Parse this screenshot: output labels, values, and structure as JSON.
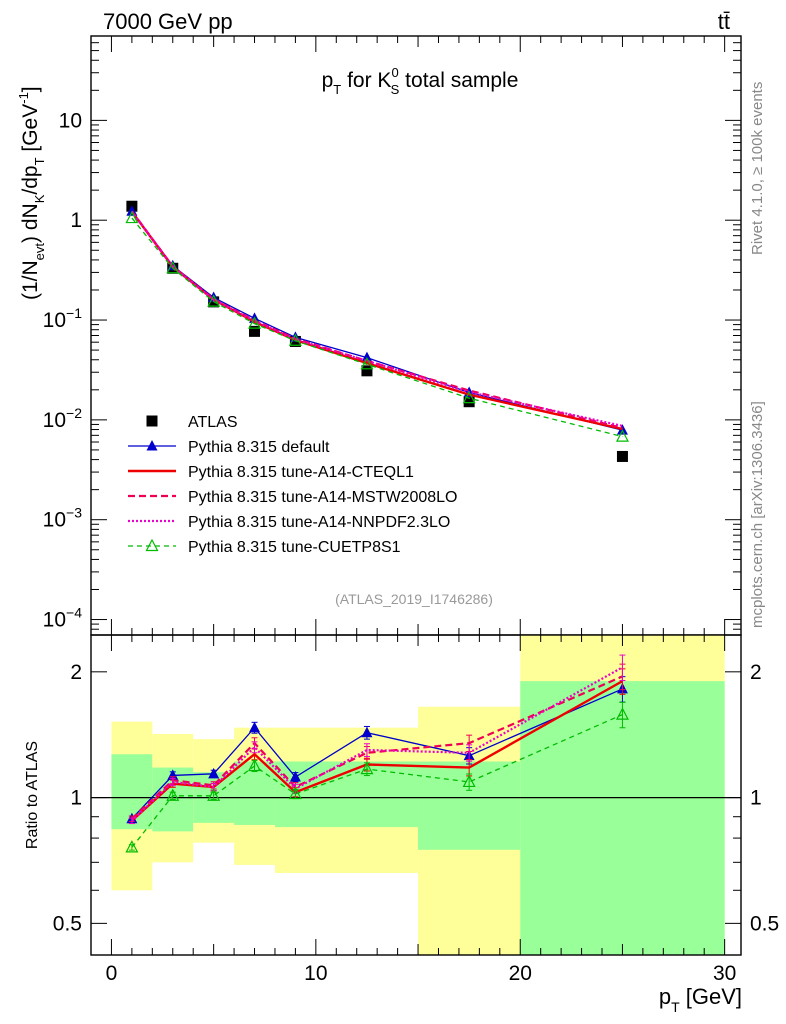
{
  "header": {
    "left": "7000 GeV pp",
    "right": "tt̄"
  },
  "side_labels": {
    "top": "Rivet 4.1.0, ≥ 100k events",
    "bottom": "mcplots.cern.ch [arXiv:1306.3436]"
  },
  "watermark": "(ATLAS_2019_I1746286)",
  "chart_data": [
    {
      "type": "line",
      "panel": "main",
      "title": "pT for K0S total sample",
      "title_parts": {
        "p": "p",
        "T": "T",
        "for": " for ",
        "K": "K",
        "sup": "0",
        "sub": "S",
        "rest": " total sample"
      },
      "ylabel": "(1/Nevt) dNK/dpT [GeV-1]",
      "ylabel_parts": {
        "a": "(1/N",
        "evt": "evt",
        "b": ") dN",
        "K": "K",
        "c": "/dp",
        "T": "T",
        "d": " [GeV",
        "exp": "-1",
        "e": "]"
      },
      "yscale": "log",
      "ylim": [
        7e-05,
        70
      ],
      "xlim": [
        -1.0,
        30.8
      ],
      "ytick_labels": [
        {
          "v": 10,
          "base": "10",
          "exp": ""
        },
        {
          "v": 1,
          "base": "1",
          "exp": ""
        },
        {
          "v": 0.1,
          "base": "10",
          "exp": "−1"
        },
        {
          "v": 0.01,
          "base": "10",
          "exp": "−2"
        },
        {
          "v": 0.001,
          "base": "10",
          "exp": "−3"
        },
        {
          "v": 0.0001,
          "base": "10",
          "exp": "−4"
        }
      ],
      "x": [
        1,
        3,
        5,
        7,
        9,
        12.5,
        17.5,
        25
      ],
      "series": [
        {
          "name": "ATLAS",
          "color": "#000000",
          "style": "points",
          "marker": "square",
          "values": [
            1.38,
            0.33,
            0.152,
            0.077,
            0.061,
            0.031,
            0.0152,
            0.0043
          ]
        },
        {
          "name": "Pythia 8.315 default",
          "color": "#0000cc",
          "style": "solid-thin",
          "marker": "triangle",
          "values": [
            1.23,
            0.35,
            0.168,
            0.104,
            0.067,
            0.042,
            0.0188,
            0.0079
          ]
        },
        {
          "name": "Pythia 8.315 tune-A14-CTEQL1",
          "color": "#ee0000",
          "style": "solid",
          "marker": "none",
          "values": [
            1.22,
            0.34,
            0.16,
            0.096,
            0.063,
            0.037,
            0.0179,
            0.0081
          ]
        },
        {
          "name": "Pythia 8.315 tune-A14-MSTW2008LO",
          "color": "#ee0055",
          "style": "dashed",
          "marker": "none",
          "values": [
            1.23,
            0.345,
            0.162,
            0.099,
            0.065,
            0.039,
            0.0197,
            0.0083
          ]
        },
        {
          "name": "Pythia 8.315 tune-A14-NNPDF2.3LO",
          "color": "#ee00cc",
          "style": "dotted",
          "marker": "none",
          "values": [
            1.22,
            0.343,
            0.16,
            0.098,
            0.064,
            0.039,
            0.019,
            0.0087
          ]
        },
        {
          "name": "Pythia 8.315 tune-CUETP8S1",
          "color": "#00bb00",
          "style": "dashed-thin",
          "marker": "open-triangle",
          "values": [
            1.05,
            0.33,
            0.153,
            0.092,
            0.062,
            0.036,
            0.0165,
            0.0068
          ]
        }
      ],
      "legend": "middle-left"
    },
    {
      "type": "line",
      "panel": "ratio",
      "ylabel": "Ratio to ATLAS",
      "yscale": "log",
      "ylim": [
        0.42,
        2.45
      ],
      "xlim": [
        -1.0,
        30.8
      ],
      "xlabel": "pT [GeV]",
      "xlabel_parts": {
        "p": "p",
        "T": "T",
        "unit": " [GeV]"
      },
      "xticks": [
        0,
        10,
        20,
        30
      ],
      "yticks": [
        0.5,
        1,
        2
      ],
      "ytick_labels": [
        "0.5",
        "1",
        "2"
      ],
      "reference_line": 1,
      "bands": [
        {
          "x0": 0,
          "x1": 2,
          "inner": [
            0.84,
            1.27
          ],
          "outer": [
            0.6,
            1.52
          ]
        },
        {
          "x0": 2,
          "x1": 4,
          "inner": [
            0.83,
            1.18
          ],
          "outer": [
            0.7,
            1.42
          ]
        },
        {
          "x0": 4,
          "x1": 6,
          "inner": [
            0.87,
            1.15
          ],
          "outer": [
            0.78,
            1.38
          ]
        },
        {
          "x0": 6,
          "x1": 8,
          "inner": [
            0.86,
            1.22
          ],
          "outer": [
            0.69,
            1.47
          ]
        },
        {
          "x0": 8,
          "x1": 15,
          "inner": [
            0.85,
            1.22
          ],
          "outer": [
            0.66,
            1.47
          ]
        },
        {
          "x0": 15,
          "x1": 20,
          "inner": [
            0.75,
            1.22
          ],
          "outer": [
            0.39,
            1.65
          ]
        },
        {
          "x0": 20,
          "x1": 30,
          "inner": [
            0.4,
            1.9
          ],
          "outer": [
            0.4,
            2.45
          ]
        }
      ],
      "x": [
        1,
        3,
        5,
        7,
        9,
        12.5,
        17.5,
        25
      ],
      "series": [
        {
          "name": "Pythia 8.315 default",
          "color": "#0000cc",
          "style": "solid-thin",
          "marker": "triangle",
          "values": [
            0.89,
            1.13,
            1.14,
            1.47,
            1.12,
            1.43,
            1.26,
            1.82
          ]
        },
        {
          "name": "Pythia 8.315 tune-A14-CTEQL1",
          "color": "#ee0000",
          "style": "solid",
          "marker": "none",
          "values": [
            0.88,
            1.08,
            1.06,
            1.27,
            1.03,
            1.2,
            1.18,
            1.9
          ]
        },
        {
          "name": "Pythia 8.315 tune-A14-MSTW2008LO",
          "color": "#ee0055",
          "style": "dashed",
          "marker": "none",
          "values": [
            0.89,
            1.1,
            1.07,
            1.35,
            1.06,
            1.28,
            1.35,
            1.95
          ]
        },
        {
          "name": "Pythia 8.315 tune-A14-NNPDF2.3LO",
          "color": "#ee00cc",
          "style": "dotted",
          "marker": "none",
          "values": [
            0.88,
            1.09,
            1.06,
            1.32,
            1.05,
            1.3,
            1.28,
            2.05
          ]
        },
        {
          "name": "Pythia 8.315 tune-CUETP8S1",
          "color": "#00bb00",
          "style": "dashed-thin",
          "marker": "open-triangle",
          "values": [
            0.76,
            1.01,
            1.01,
            1.19,
            1.02,
            1.17,
            1.09,
            1.58
          ]
        }
      ],
      "series_errors": [
        0.015,
        0.02,
        0.02,
        0.03,
        0.025,
        0.035,
        0.045,
        0.07
      ]
    }
  ]
}
